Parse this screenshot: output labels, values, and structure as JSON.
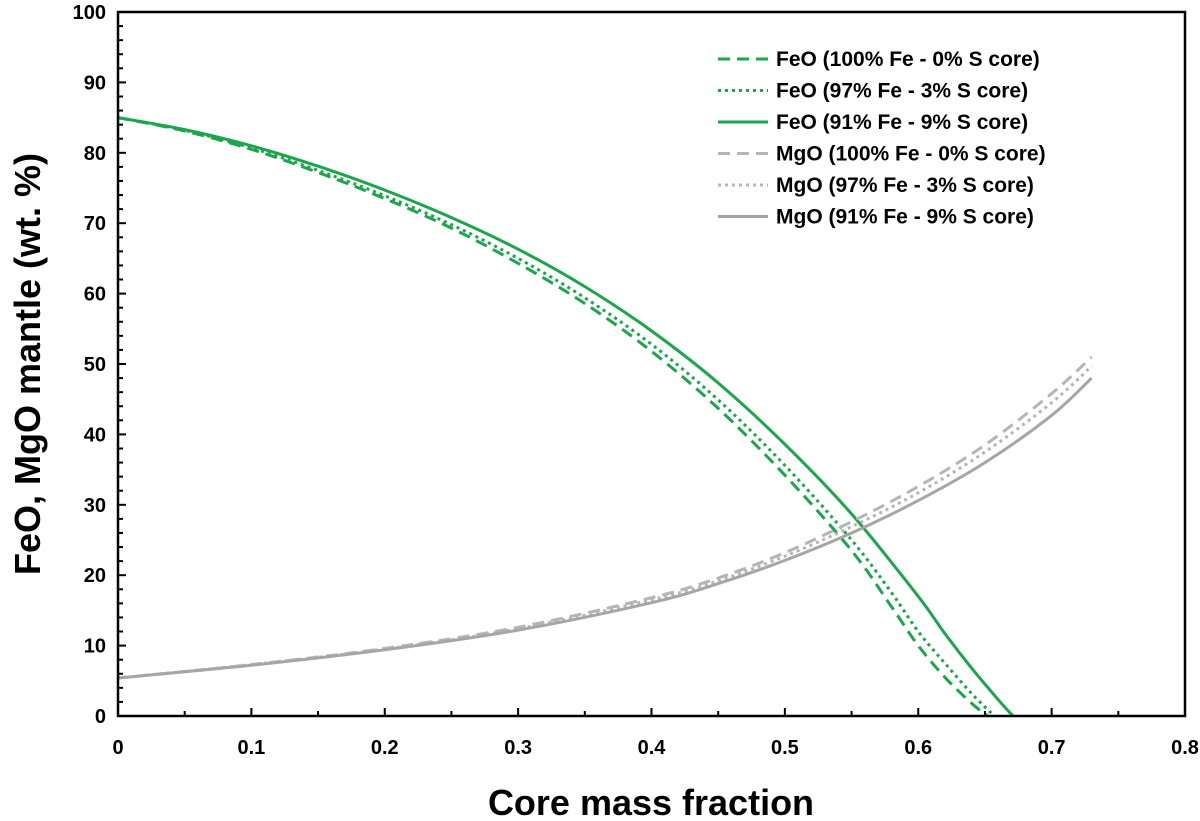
{
  "chart_data": {
    "type": "line",
    "title": "",
    "xlabel": "Core mass fraction",
    "ylabel": "FeO, MgO mantle (wt. %)",
    "xlim": [
      0,
      0.8
    ],
    "ylim": [
      0,
      100
    ],
    "xticks": [
      "0",
      "0.1",
      "0.2",
      "0.3",
      "0.4",
      "0.5",
      "0.6",
      "0.7",
      "0.8"
    ],
    "yticks": [
      "0",
      "10",
      "20",
      "30",
      "40",
      "50",
      "60",
      "70",
      "80",
      "90",
      "100"
    ],
    "xtick_values": [
      0,
      0.1,
      0.2,
      0.3,
      0.4,
      0.5,
      0.6,
      0.7,
      0.8
    ],
    "ytick_values": [
      0,
      10,
      20,
      30,
      40,
      50,
      60,
      70,
      80,
      90,
      100
    ],
    "legend_position": "top-right",
    "series": [
      {
        "name": "FeO (100% Fe - 0% S core)",
        "color": "#1aa64a",
        "dash": "dashed",
        "x": [
          0,
          0.05,
          0.1,
          0.15,
          0.2,
          0.25,
          0.3,
          0.35,
          0.4,
          0.45,
          0.5,
          0.55,
          0.58,
          0.6,
          0.62,
          0.64,
          0.652
        ],
        "y": [
          85,
          83.1,
          80.5,
          77.2,
          73.5,
          69.3,
          64.3,
          58.6,
          51.8,
          43.7,
          34.2,
          23.5,
          15.5,
          10,
          5.5,
          1.8,
          0
        ]
      },
      {
        "name": "FeO (97% Fe - 3% S core)",
        "color": "#1aa64a",
        "dash": "dotted",
        "x": [
          0,
          0.05,
          0.1,
          0.15,
          0.2,
          0.25,
          0.3,
          0.35,
          0.4,
          0.45,
          0.5,
          0.55,
          0.58,
          0.6,
          0.62,
          0.64,
          0.657
        ],
        "y": [
          85,
          83.2,
          80.7,
          77.5,
          73.9,
          69.8,
          65,
          59.4,
          52.8,
          44.9,
          35.6,
          25,
          17.5,
          12,
          7.5,
          3.2,
          0
        ]
      },
      {
        "name": "FeO (91% Fe - 9% S core)",
        "color": "#1aa64a",
        "dash": "solid",
        "x": [
          0,
          0.05,
          0.1,
          0.15,
          0.2,
          0.25,
          0.3,
          0.35,
          0.4,
          0.45,
          0.5,
          0.55,
          0.6,
          0.62,
          0.64,
          0.66,
          0.671
        ],
        "y": [
          85,
          83.3,
          81,
          78.1,
          74.7,
          70.8,
          66.3,
          61,
          54.7,
          47.3,
          38.6,
          28.7,
          17,
          11.7,
          6.8,
          2.3,
          0
        ]
      },
      {
        "name": "MgO (100% Fe - 0% S core)",
        "color": "#b5b5b5",
        "dash": "dashed",
        "x": [
          0,
          0.1,
          0.2,
          0.3,
          0.4,
          0.45,
          0.5,
          0.55,
          0.6,
          0.65,
          0.7,
          0.73
        ],
        "y": [
          5.4,
          7.3,
          9.6,
          12.6,
          16.8,
          19.6,
          23.2,
          27.6,
          32.6,
          38.5,
          45.8,
          51
        ]
      },
      {
        "name": "MgO (97% Fe - 3% S core)",
        "color": "#b5b5b5",
        "dash": "dotted",
        "x": [
          0,
          0.1,
          0.2,
          0.3,
          0.4,
          0.45,
          0.5,
          0.55,
          0.6,
          0.65,
          0.7,
          0.73
        ],
        "y": [
          5.4,
          7.3,
          9.5,
          12.4,
          16.5,
          19.2,
          22.7,
          26.9,
          31.7,
          37.5,
          44.5,
          49.7
        ]
      },
      {
        "name": "MgO (91% Fe - 9% S core)",
        "color": "#a6a6a6",
        "dash": "solid",
        "x": [
          0,
          0.1,
          0.2,
          0.3,
          0.4,
          0.45,
          0.5,
          0.55,
          0.6,
          0.65,
          0.7,
          0.73
        ],
        "y": [
          5.4,
          7.2,
          9.4,
          12.2,
          16.1,
          18.8,
          22.1,
          26,
          30.6,
          36,
          42.7,
          48
        ]
      }
    ]
  }
}
